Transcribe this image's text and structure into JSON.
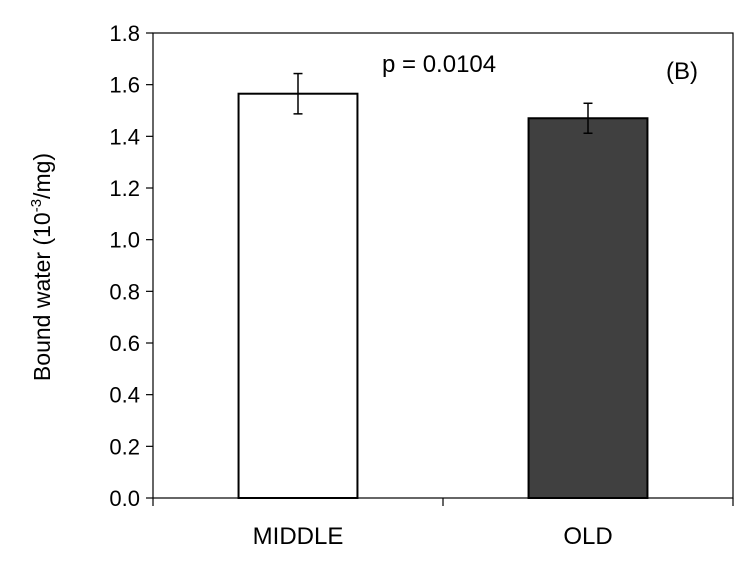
{
  "chart_data": {
    "type": "bar",
    "panel_label": "(B)",
    "annotation": "p = 0.0104",
    "ylabel": {
      "prefix": "Bound water (10",
      "exponent": "-3",
      "suffix": "/mg)"
    },
    "ylim": [
      0,
      1.8
    ],
    "yticks": [
      0.0,
      0.2,
      0.4,
      0.6,
      0.8,
      1.0,
      1.2,
      1.4,
      1.6,
      1.8
    ],
    "ytick_labels": [
      "0.0",
      "0.2",
      "0.4",
      "0.6",
      "0.8",
      "1.0",
      "1.2",
      "1.4",
      "1.6",
      "1.8"
    ],
    "categories": [
      "MIDDLE",
      "OLD"
    ],
    "values": [
      1.565,
      1.47
    ],
    "error": [
      0.078,
      0.058
    ],
    "bar_colors": [
      "#ffffff",
      "#404040"
    ],
    "grid": false,
    "legend": "none"
  }
}
